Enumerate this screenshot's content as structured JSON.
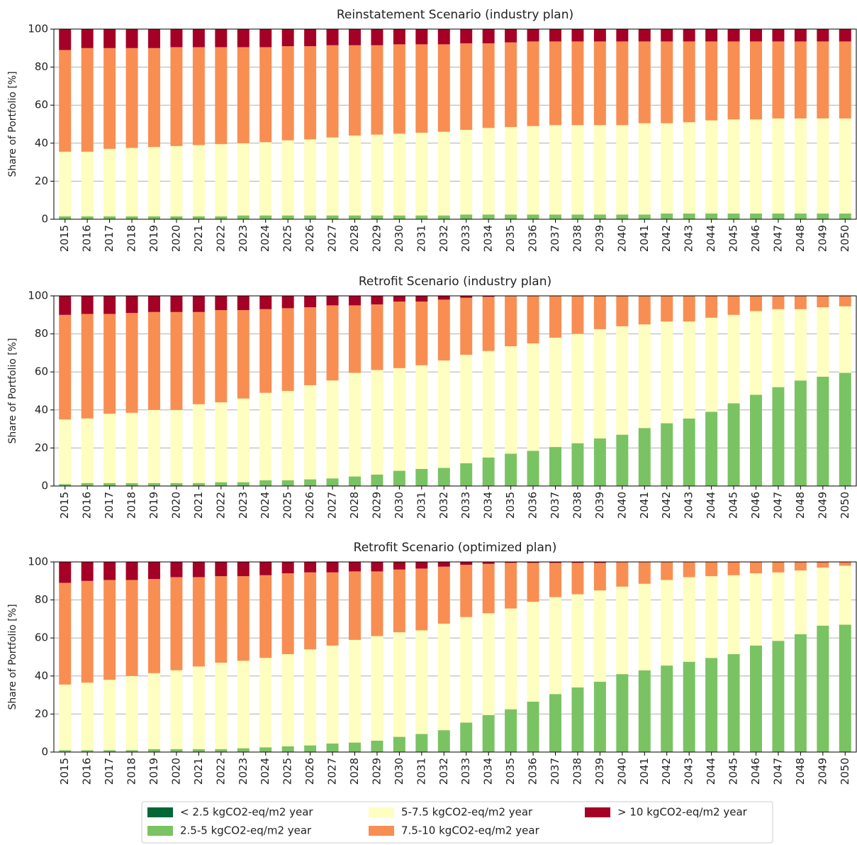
{
  "chart_data": [
    {
      "type": "bar",
      "stacked": true,
      "title": "Reinstatement Scenario (industry plan)",
      "ylabel": "Share of Portfolio [%]",
      "categories": [
        "2015",
        "2016",
        "2017",
        "2018",
        "2019",
        "2020",
        "2021",
        "2022",
        "2023",
        "2024",
        "2025",
        "2026",
        "2027",
        "2028",
        "2029",
        "2030",
        "2031",
        "2032",
        "2033",
        "2034",
        "2035",
        "2036",
        "2037",
        "2038",
        "2039",
        "2040",
        "2041",
        "2042",
        "2043",
        "2044",
        "2045",
        "2046",
        "2047",
        "2048",
        "2049",
        "2050"
      ],
      "ylim": [
        0,
        100
      ],
      "yticks": [
        0,
        20,
        40,
        60,
        80,
        100
      ],
      "grid": true,
      "series": [
        {
          "values": [
            0,
            0,
            0,
            0,
            0,
            0,
            0,
            0,
            0,
            0,
            0,
            0,
            0,
            0,
            0,
            0,
            0,
            0,
            0,
            0,
            0,
            0,
            0,
            0,
            0,
            0,
            0,
            0,
            0,
            0,
            0,
            0,
            0,
            0,
            0,
            0
          ]
        },
        {
          "values": [
            1.5,
            1.5,
            1.5,
            1.5,
            1.5,
            1.5,
            1.5,
            1.5,
            2,
            2,
            2,
            2,
            2,
            2,
            2,
            2,
            2,
            2,
            2.5,
            2.5,
            2.5,
            2.5,
            2.5,
            2.5,
            2.5,
            2.5,
            2.5,
            3,
            3,
            3,
            3,
            3,
            3,
            3,
            3,
            3
          ]
        },
        {
          "values": [
            34,
            34,
            35.5,
            36,
            36.5,
            37,
            37.5,
            38,
            38,
            38.5,
            39.5,
            40,
            41,
            42,
            42.5,
            43,
            43.5,
            44,
            44.5,
            45.5,
            46,
            46.5,
            47,
            47,
            47,
            47,
            48,
            47.5,
            48,
            49,
            49.5,
            49.5,
            50,
            50,
            50,
            50
          ]
        },
        {
          "values": [
            53.5,
            54.5,
            53,
            52.5,
            52,
            52,
            51.5,
            51,
            50.5,
            50,
            49.5,
            49,
            48.5,
            47.5,
            47,
            47,
            46.5,
            46,
            45.5,
            44.5,
            44.5,
            44.5,
            44,
            44,
            44,
            44,
            43,
            43,
            42.5,
            41.5,
            41,
            41,
            40.5,
            40.5,
            40.5,
            40.5
          ]
        },
        {
          "values": [
            11,
            10,
            10,
            10,
            10,
            9.5,
            9.5,
            9.5,
            9.5,
            9.5,
            9,
            9,
            8.5,
            8.5,
            8.5,
            8,
            8,
            8,
            7.5,
            7.5,
            7,
            6.5,
            6.5,
            6.5,
            6.5,
            6.5,
            6.5,
            6.5,
            6.5,
            6.5,
            6.5,
            6.5,
            6.5,
            6.5,
            6.5,
            6.5
          ]
        }
      ]
    },
    {
      "type": "bar",
      "stacked": true,
      "title": "Retrofit Scenario (industry plan)",
      "ylabel": "Share of Portfolio [%]",
      "categories": [
        "2015",
        "2016",
        "2017",
        "2018",
        "2019",
        "2020",
        "2021",
        "2022",
        "2023",
        "2024",
        "2025",
        "2026",
        "2027",
        "2028",
        "2029",
        "2030",
        "2031",
        "2032",
        "2033",
        "2034",
        "2035",
        "2036",
        "2037",
        "2038",
        "2039",
        "2040",
        "2041",
        "2042",
        "2043",
        "2044",
        "2045",
        "2046",
        "2047",
        "2048",
        "2049",
        "2050"
      ],
      "ylim": [
        0,
        100
      ],
      "yticks": [
        0,
        20,
        40,
        60,
        80,
        100
      ],
      "grid": true,
      "series": [
        {
          "values": [
            0,
            0,
            0,
            0,
            0,
            0,
            0,
            0,
            0,
            0,
            0,
            0,
            0,
            0,
            0,
            0,
            0,
            0,
            0,
            0,
            0,
            0,
            0,
            0,
            0,
            0,
            0,
            0,
            0,
            0,
            0,
            0,
            0,
            0,
            0,
            0
          ]
        },
        {
          "values": [
            1,
            1.5,
            1.5,
            1.5,
            1.5,
            1.5,
            1.5,
            2,
            2,
            3,
            3,
            3.5,
            4,
            5,
            6,
            8,
            9,
            9.5,
            12,
            15,
            17,
            18.5,
            20.5,
            22.5,
            25,
            27,
            30.5,
            33,
            35.5,
            39,
            43.5,
            48,
            52,
            55.5,
            57.5,
            59.5
          ]
        },
        {
          "values": [
            34,
            34,
            36.5,
            37,
            38.5,
            38.5,
            41.5,
            42,
            44,
            46,
            47,
            49.5,
            51.5,
            54.5,
            55,
            54,
            54.5,
            56.5,
            57,
            56,
            56.5,
            56.5,
            57.5,
            57.5,
            57.5,
            57,
            54.5,
            53.5,
            51,
            49.5,
            46.5,
            44,
            41,
            37.5,
            36.5,
            35
          ]
        },
        {
          "values": [
            55,
            55,
            52.5,
            52.5,
            51.5,
            51.5,
            48.5,
            48.5,
            46.5,
            44,
            43.5,
            41,
            39.5,
            35.5,
            34.5,
            35,
            33.5,
            32,
            30,
            28.5,
            26.5,
            25,
            22,
            20,
            17.5,
            16,
            15,
            13.5,
            13.5,
            11.5,
            10,
            8,
            7,
            7,
            6,
            5.5
          ]
        },
        {
          "values": [
            10,
            9.5,
            9.5,
            9,
            8.5,
            8.5,
            8.5,
            7.5,
            7.5,
            7,
            6.5,
            6,
            5,
            5,
            4.5,
            3,
            3,
            2,
            1,
            0.5,
            0,
            0,
            0,
            0,
            0,
            0,
            0,
            0,
            0,
            0,
            0,
            0,
            0,
            0,
            0,
            0
          ]
        }
      ]
    },
    {
      "type": "bar",
      "stacked": true,
      "title": "Retrofit Scenario (optimized plan)",
      "ylabel": "Share of Portfolio [%]",
      "categories": [
        "2015",
        "2016",
        "2017",
        "2018",
        "2019",
        "2020",
        "2021",
        "2022",
        "2023",
        "2024",
        "2025",
        "2026",
        "2027",
        "2028",
        "2029",
        "2030",
        "2031",
        "2032",
        "2033",
        "2034",
        "2035",
        "2036",
        "2037",
        "2038",
        "2039",
        "2040",
        "2041",
        "2042",
        "2043",
        "2044",
        "2045",
        "2046",
        "2047",
        "2048",
        "2049",
        "2050"
      ],
      "ylim": [
        0,
        100
      ],
      "yticks": [
        0,
        20,
        40,
        60,
        80,
        100
      ],
      "grid": true,
      "series": [
        {
          "values": [
            0,
            0,
            0,
            0,
            0,
            0,
            0,
            0,
            0,
            0,
            0,
            0,
            0,
            0,
            0,
            0,
            0,
            0,
            0,
            0,
            0,
            0,
            0,
            0,
            0,
            0,
            0,
            0,
            0,
            0,
            0,
            0,
            0,
            0,
            0,
            0
          ]
        },
        {
          "values": [
            1,
            1,
            1,
            1,
            1.5,
            1.5,
            1.5,
            1.5,
            2,
            2.5,
            3,
            3.5,
            4.5,
            5,
            6,
            8,
            9.5,
            11.5,
            15.5,
            19.5,
            22.5,
            26.5,
            30.5,
            34,
            37,
            41,
            43,
            45.5,
            47.5,
            49.5,
            51.5,
            56,
            58.5,
            62,
            66.5,
            67
          ]
        },
        {
          "values": [
            34.5,
            35.5,
            37,
            39,
            40,
            41.5,
            43.5,
            45.5,
            46,
            47,
            48.5,
            50.5,
            51.5,
            54,
            55,
            55,
            54.5,
            56,
            55.5,
            53.5,
            53,
            52.5,
            51,
            49,
            48,
            46,
            45.5,
            45,
            44.5,
            43,
            41.5,
            38,
            36,
            33.5,
            30.5,
            31
          ]
        },
        {
          "values": [
            53.5,
            53.5,
            52.5,
            50.5,
            49.5,
            49,
            47,
            45.5,
            44.5,
            43.5,
            42.5,
            40.5,
            38.5,
            36,
            34,
            33,
            32.5,
            30,
            27.5,
            26,
            24,
            20.5,
            18,
            16.5,
            14.5,
            13,
            11.5,
            9.5,
            8,
            7.5,
            7,
            6,
            5.5,
            4.5,
            3,
            2
          ]
        },
        {
          "values": [
            11,
            10,
            9.5,
            9.5,
            9,
            8,
            8,
            7.5,
            7.5,
            7,
            6,
            5.5,
            5.5,
            5,
            5,
            4,
            3.5,
            2.5,
            1.5,
            1,
            0.5,
            0.5,
            0.5,
            0.5,
            0.5,
            0,
            0,
            0,
            0,
            0,
            0,
            0,
            0,
            0,
            0,
            0
          ]
        }
      ]
    }
  ],
  "legend": {
    "location": "lower center",
    "series": [
      {
        "name": "< 2.5 kgCO2-eq/m2 year",
        "color": "#006837"
      },
      {
        "name": "2.5-5 kgCO2-eq/m2 year",
        "color": "#7ac363"
      },
      {
        "name": "5-7.5 kgCO2-eq/m2 year",
        "color": "#fefec0"
      },
      {
        "name": "7.5-10 kgCO2-eq/m2 year",
        "color": "#f98e52"
      },
      {
        "name": "> 10 kgCO2-eq/m2 year",
        "color": "#a50026"
      }
    ]
  }
}
